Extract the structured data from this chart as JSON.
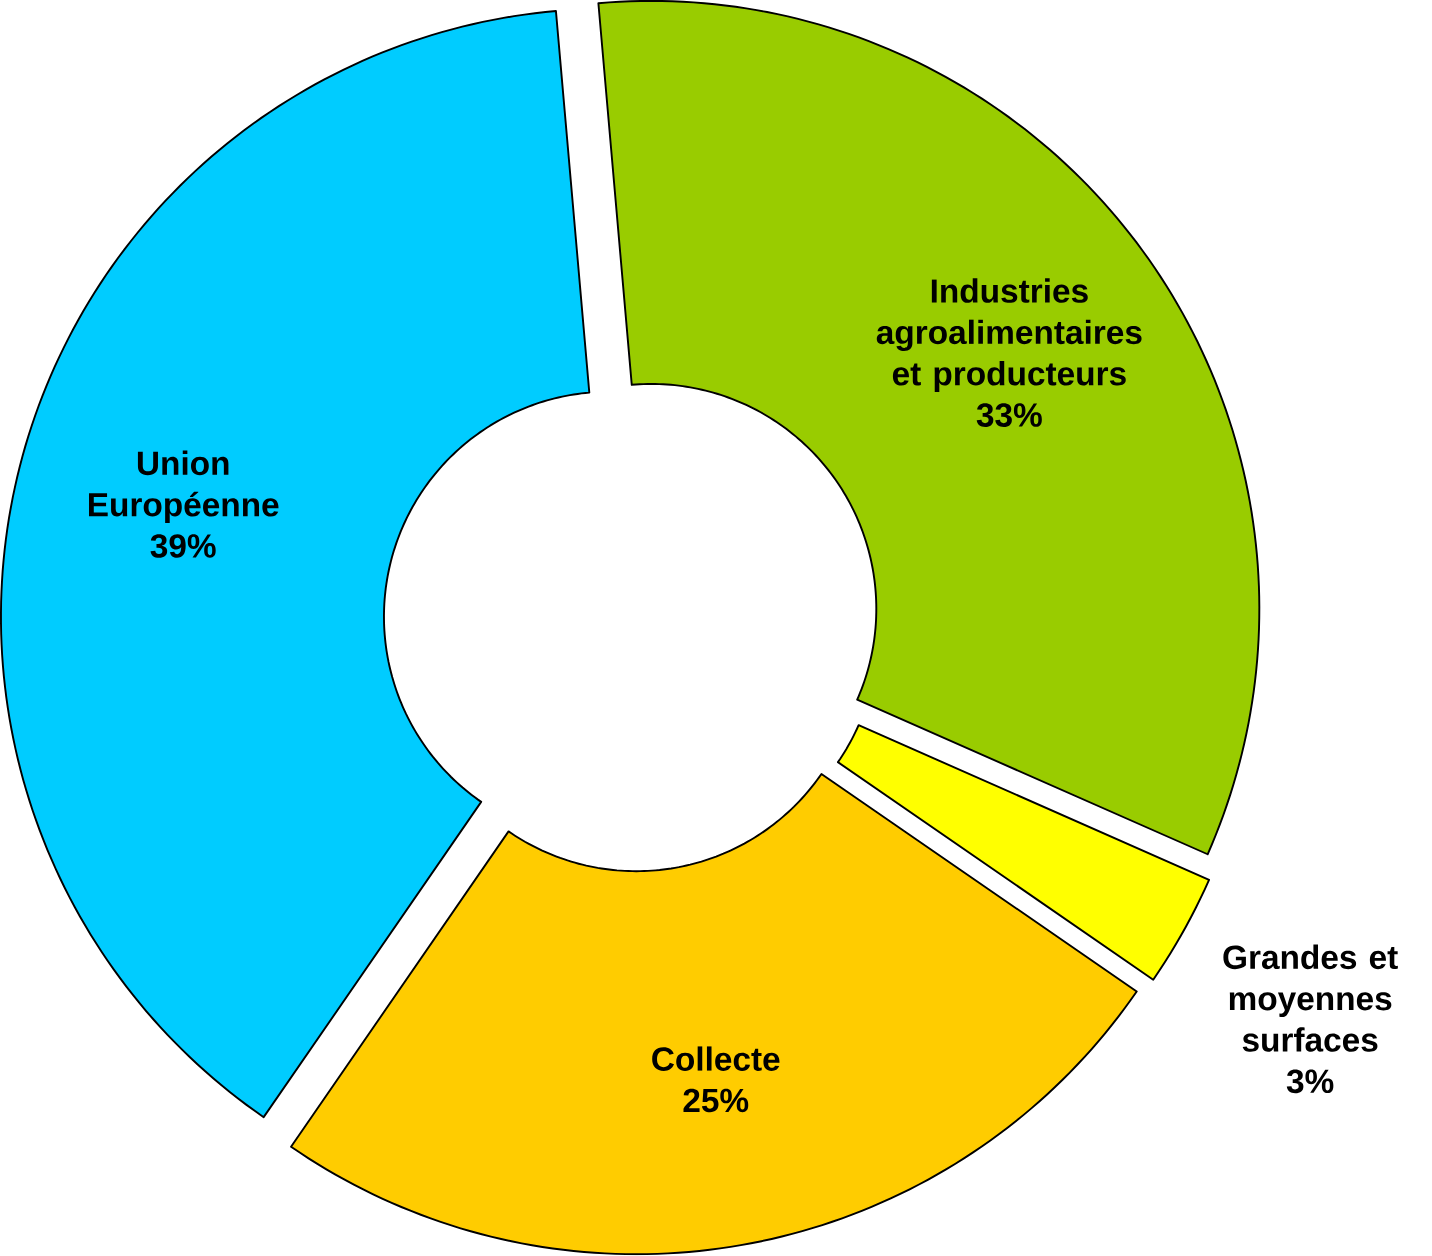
{
  "chart_data": {
    "type": "donut",
    "categories": [
      "Industries agroalimentaires et producteurs",
      "Grandes et moyennes surfaces",
      "Collecte",
      "Union Européenne"
    ],
    "values": [
      33,
      3,
      25,
      39
    ],
    "colors": [
      "#99cc00",
      "#ffff00",
      "#ffcc00",
      "#00ccff"
    ],
    "value_labels": [
      "33%",
      "3%",
      "25%",
      "39%"
    ]
  }
}
